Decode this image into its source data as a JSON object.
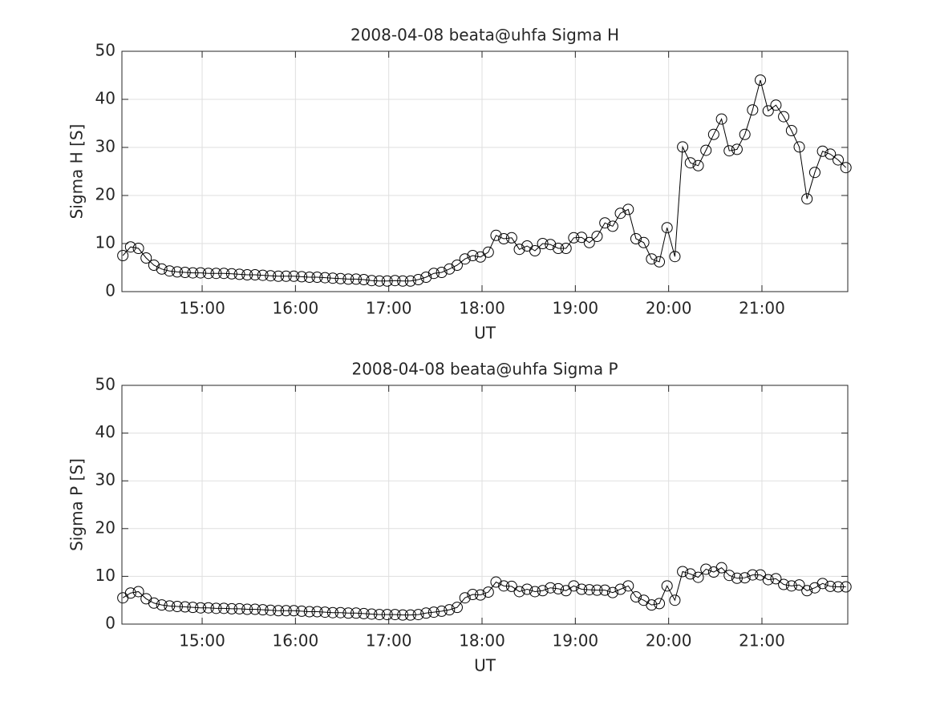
{
  "chart_data": [
    {
      "type": "line",
      "title": "2008-04-08  beata@uhfa Sigma H",
      "xlabel": "UT",
      "ylabel": "Sigma H [S]",
      "color": "#000000",
      "grid": true,
      "x": [
        14.15,
        14.233,
        14.317,
        14.4,
        14.483,
        14.567,
        14.65,
        14.733,
        14.817,
        14.9,
        14.983,
        15.067,
        15.15,
        15.233,
        15.317,
        15.4,
        15.483,
        15.567,
        15.65,
        15.733,
        15.817,
        15.9,
        15.983,
        16.067,
        16.15,
        16.233,
        16.317,
        16.4,
        16.483,
        16.567,
        16.65,
        16.733,
        16.817,
        16.9,
        16.983,
        17.067,
        17.15,
        17.233,
        17.317,
        17.4,
        17.483,
        17.567,
        17.65,
        17.733,
        17.817,
        17.9,
        17.983,
        18.067,
        18.15,
        18.233,
        18.317,
        18.4,
        18.483,
        18.567,
        18.65,
        18.733,
        18.817,
        18.9,
        18.983,
        19.067,
        19.15,
        19.233,
        19.317,
        19.4,
        19.483,
        19.567,
        19.65,
        19.733,
        19.817,
        19.9,
        19.983,
        20.067,
        20.15,
        20.233,
        20.317,
        20.4,
        20.483,
        20.567,
        20.65,
        20.733,
        20.817,
        20.9,
        20.983,
        21.067,
        21.15,
        21.233,
        21.317,
        21.4,
        21.483,
        21.567,
        21.65,
        21.733,
        21.817,
        21.9
      ],
      "values": [
        7.5,
        9.3,
        9.0,
        7.0,
        5.5,
        4.7,
        4.3,
        4.1,
        4.0,
        3.9,
        3.9,
        3.8,
        3.8,
        3.8,
        3.7,
        3.6,
        3.5,
        3.5,
        3.4,
        3.3,
        3.2,
        3.2,
        3.2,
        3.1,
        3.0,
        3.0,
        2.9,
        2.8,
        2.7,
        2.6,
        2.6,
        2.5,
        2.3,
        2.2,
        2.2,
        2.3,
        2.2,
        2.2,
        2.5,
        3.0,
        3.8,
        4.0,
        4.7,
        5.5,
        6.8,
        7.5,
        7.2,
        8.2,
        11.7,
        11.0,
        11.2,
        8.8,
        9.5,
        8.5,
        10.0,
        9.8,
        9.0,
        9.0,
        11.2,
        11.3,
        10.2,
        11.5,
        14.3,
        13.6,
        16.3,
        17.1,
        11.0,
        10.2,
        6.8,
        6.2,
        13.3,
        7.3,
        30.1,
        26.8,
        26.2,
        29.4,
        32.7,
        35.9,
        29.3,
        29.6,
        32.7,
        37.8,
        44.0,
        37.6,
        38.8,
        36.4,
        33.5,
        30.1,
        19.3,
        24.8,
        29.2,
        28.6,
        27.4,
        25.8
      ],
      "xlim": [
        14.14,
        21.92
      ],
      "xticks": [
        {
          "value": 15,
          "label": "15:00"
        },
        {
          "value": 16,
          "label": "16:00"
        },
        {
          "value": 17,
          "label": "17:00"
        },
        {
          "value": 18,
          "label": "18:00"
        },
        {
          "value": 19,
          "label": "19:00"
        },
        {
          "value": 20,
          "label": "20:00"
        },
        {
          "value": 21,
          "label": "21:00"
        }
      ],
      "ylim": [
        0,
        50
      ],
      "yticks": [
        0,
        10,
        20,
        30,
        40,
        50
      ]
    },
    {
      "type": "line",
      "title": "2008-04-08  beata@uhfa Sigma P",
      "xlabel": "UT",
      "ylabel": "Sigma P [S]",
      "color": "#000000",
      "grid": true,
      "x": [
        14.15,
        14.233,
        14.317,
        14.4,
        14.483,
        14.567,
        14.65,
        14.733,
        14.817,
        14.9,
        14.983,
        15.067,
        15.15,
        15.233,
        15.317,
        15.4,
        15.483,
        15.567,
        15.65,
        15.733,
        15.817,
        15.9,
        15.983,
        16.067,
        16.15,
        16.233,
        16.317,
        16.4,
        16.483,
        16.567,
        16.65,
        16.733,
        16.817,
        16.9,
        16.983,
        17.067,
        17.15,
        17.233,
        17.317,
        17.4,
        17.483,
        17.567,
        17.65,
        17.733,
        17.817,
        17.9,
        17.983,
        18.067,
        18.15,
        18.233,
        18.317,
        18.4,
        18.483,
        18.567,
        18.65,
        18.733,
        18.817,
        18.9,
        18.983,
        19.067,
        19.15,
        19.233,
        19.317,
        19.4,
        19.483,
        19.567,
        19.65,
        19.733,
        19.817,
        19.9,
        19.983,
        20.067,
        20.15,
        20.233,
        20.317,
        20.4,
        20.483,
        20.567,
        20.65,
        20.733,
        20.817,
        20.9,
        20.983,
        21.067,
        21.15,
        21.233,
        21.317,
        21.4,
        21.483,
        21.567,
        21.65,
        21.733,
        21.817,
        21.9
      ],
      "values": [
        5.5,
        6.5,
        6.8,
        5.3,
        4.4,
        4.0,
        3.8,
        3.7,
        3.6,
        3.5,
        3.4,
        3.4,
        3.3,
        3.3,
        3.2,
        3.2,
        3.1,
        3.1,
        3.0,
        2.9,
        2.8,
        2.8,
        2.8,
        2.7,
        2.6,
        2.6,
        2.5,
        2.4,
        2.4,
        2.3,
        2.3,
        2.2,
        2.1,
        2.0,
        2.0,
        2.0,
        1.9,
        1.9,
        2.0,
        2.3,
        2.5,
        2.7,
        3.0,
        3.5,
        5.5,
        6.2,
        6.1,
        6.7,
        8.8,
        8.0,
        7.9,
        6.8,
        7.3,
        6.8,
        7.0,
        7.6,
        7.4,
        7.0,
        8.0,
        7.3,
        7.2,
        7.1,
        7.1,
        6.6,
        7.3,
        8.0,
        5.7,
        5.0,
        4.0,
        4.3,
        8.0,
        5.0,
        11.0,
        10.5,
        9.8,
        11.5,
        10.9,
        11.8,
        10.2,
        9.6,
        9.7,
        10.3,
        10.3,
        9.3,
        9.5,
        8.3,
        8.0,
        8.2,
        7.0,
        7.6,
        8.5,
        7.9,
        7.8,
        7.8
      ],
      "xlim": [
        14.14,
        21.92
      ],
      "xticks": [
        {
          "value": 15,
          "label": "15:00"
        },
        {
          "value": 16,
          "label": "16:00"
        },
        {
          "value": 17,
          "label": "17:00"
        },
        {
          "value": 18,
          "label": "18:00"
        },
        {
          "value": 19,
          "label": "19:00"
        },
        {
          "value": 20,
          "label": "20:00"
        },
        {
          "value": 21,
          "label": "21:00"
        }
      ],
      "ylim": [
        0,
        50
      ],
      "yticks": [
        0,
        10,
        20,
        30,
        40,
        50
      ]
    }
  ]
}
